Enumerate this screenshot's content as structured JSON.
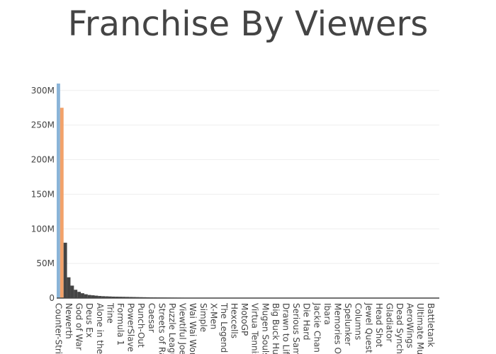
{
  "chart_data": {
    "type": "bar",
    "title": "Franchise By Viewers",
    "categories": [
      "Counter-Strik",
      null,
      null,
      "Newerth",
      null,
      null,
      "God of War",
      null,
      null,
      "Deus Ex",
      null,
      null,
      "Alone in the I",
      null,
      null,
      "Trine",
      null,
      null,
      "Formula 1",
      null,
      null,
      "PowerSlave",
      null,
      null,
      "Punch-Out",
      null,
      null,
      "Caesar",
      null,
      null,
      "Streets of Ra",
      null,
      null,
      "Puzzle Leagu",
      null,
      null,
      "Viewtiful Joe",
      null,
      null,
      "Wai Wai Wor",
      null,
      null,
      "Simple",
      null,
      null,
      "X-Men",
      null,
      null,
      "The Legend o",
      null,
      null,
      "Hexcells",
      null,
      null,
      "MotoGP",
      null,
      null,
      "Virtua Tennis",
      null,
      null,
      "Mugen Souls",
      null,
      null,
      "Big Buck Hur",
      null,
      null,
      "Drawn to Life",
      null,
      null,
      "Serious Sam",
      null,
      null,
      "Die Hard",
      null,
      null,
      "Jackie Chan",
      null,
      null,
      "Ibara",
      null,
      null,
      "Memories Of",
      null,
      null,
      "Spelunker",
      null,
      null,
      "Columns",
      null,
      null,
      "Jewel Quest",
      null,
      null,
      "Head Shot",
      null,
      null,
      "Gladiator",
      null,
      null,
      "Dead Synchr",
      null,
      null,
      "AeroWings",
      null,
      null,
      "Ultimate Mus",
      null,
      null,
      "Battletank",
      null,
      null
    ],
    "values": [
      310000000,
      275000000,
      80000000,
      30000000,
      18000000,
      12000000,
      9000000,
      7000000,
      5500000,
      4500000,
      4000000,
      3500000,
      3000000,
      2700000,
      2500000,
      2300000,
      2100000,
      2000000,
      1900000,
      1800000,
      1700000,
      1600000,
      1500000,
      1400000,
      1300000,
      1200000,
      1100000,
      1000000,
      950000,
      900000,
      850000,
      800000,
      750000,
      700000,
      650000,
      600000,
      550000,
      500000,
      480000,
      460000,
      440000,
      420000,
      400000,
      380000,
      360000,
      340000,
      320000,
      300000,
      290000,
      280000,
      270000,
      260000,
      250000,
      240000,
      230000,
      220000,
      210000,
      200000,
      190000,
      180000,
      170000,
      160000,
      150000,
      140000,
      130000,
      120000,
      110000,
      100000,
      95000,
      90000,
      85000,
      80000,
      75000,
      70000,
      65000,
      60000,
      55000,
      50000,
      45000,
      40000,
      38000,
      36000,
      34000,
      32000,
      30000,
      28000,
      26000,
      24000,
      22000,
      20000,
      18000,
      16000,
      14000,
      12000,
      10000,
      9000,
      8000,
      7000,
      6000,
      5000,
      4500,
      4000,
      3500,
      3000,
      2500,
      2000,
      1500,
      1000,
      800,
      600,
      400
    ],
    "color": "#444444",
    "colors": [
      "#8ab4d8",
      "#f2a26a"
    ],
    "ylim": [
      0,
      310000000
    ],
    "yticks": [
      {
        "value": 0,
        "label": "0"
      },
      {
        "value": 50000000,
        "label": "50M"
      },
      {
        "value": 100000000,
        "label": "100M"
      },
      {
        "value": 150000000,
        "label": "150M"
      },
      {
        "value": 200000000,
        "label": "200M"
      },
      {
        "value": 250000000,
        "label": "250M"
      },
      {
        "value": 300000000,
        "label": "300M"
      }
    ],
    "grid": true
  }
}
